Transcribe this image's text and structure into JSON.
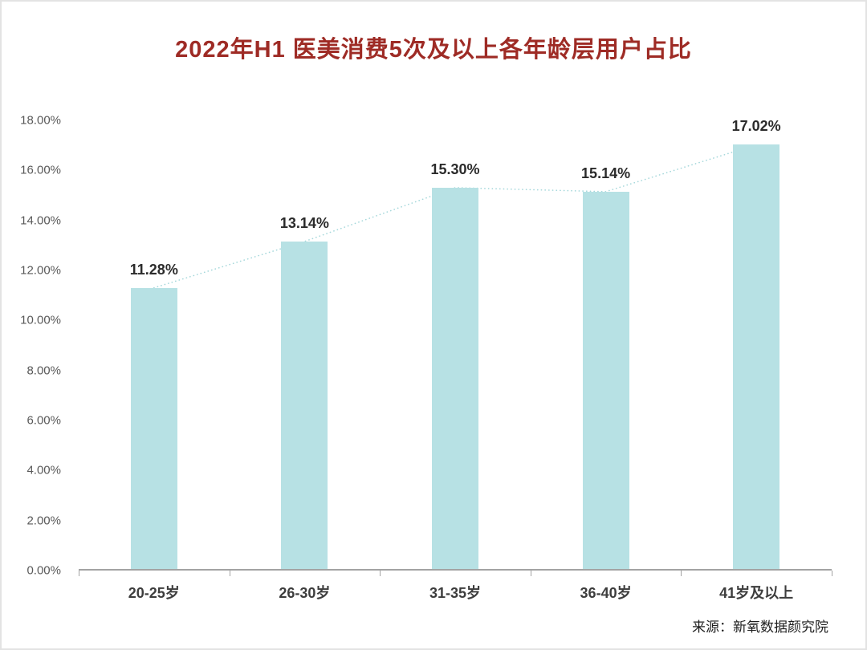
{
  "title": "2022年H1 医美消费5次及以上各年龄层用户占比",
  "source": "来源：新氧数据颜究院",
  "colors": {
    "title": "#9e2b25",
    "bar": "#b7e1e4",
    "trend": "#a6d8db",
    "axis": "#a3a3a3"
  },
  "chart_data": {
    "type": "bar",
    "title": "2022年H1 医美消费5次及以上各年龄层用户占比",
    "categories": [
      "20-25岁",
      "26-30岁",
      "31-35岁",
      "36-40岁",
      "41岁及以上"
    ],
    "values": [
      11.28,
      13.14,
      15.3,
      15.14,
      17.02
    ],
    "value_labels": [
      "11.28%",
      "13.14%",
      "15.30%",
      "15.14%",
      "17.02%"
    ],
    "xlabel": "",
    "ylabel": "",
    "ylim": [
      0,
      18
    ],
    "y_ticks": [
      "0.00%",
      "2.00%",
      "4.00%",
      "6.00%",
      "8.00%",
      "10.00%",
      "12.00%",
      "14.00%",
      "16.00%",
      "18.00%"
    ],
    "grid": false,
    "legend": false,
    "trend_line": "dotted line through bar tops",
    "source_note": "来源：新氧数据颜究院"
  }
}
